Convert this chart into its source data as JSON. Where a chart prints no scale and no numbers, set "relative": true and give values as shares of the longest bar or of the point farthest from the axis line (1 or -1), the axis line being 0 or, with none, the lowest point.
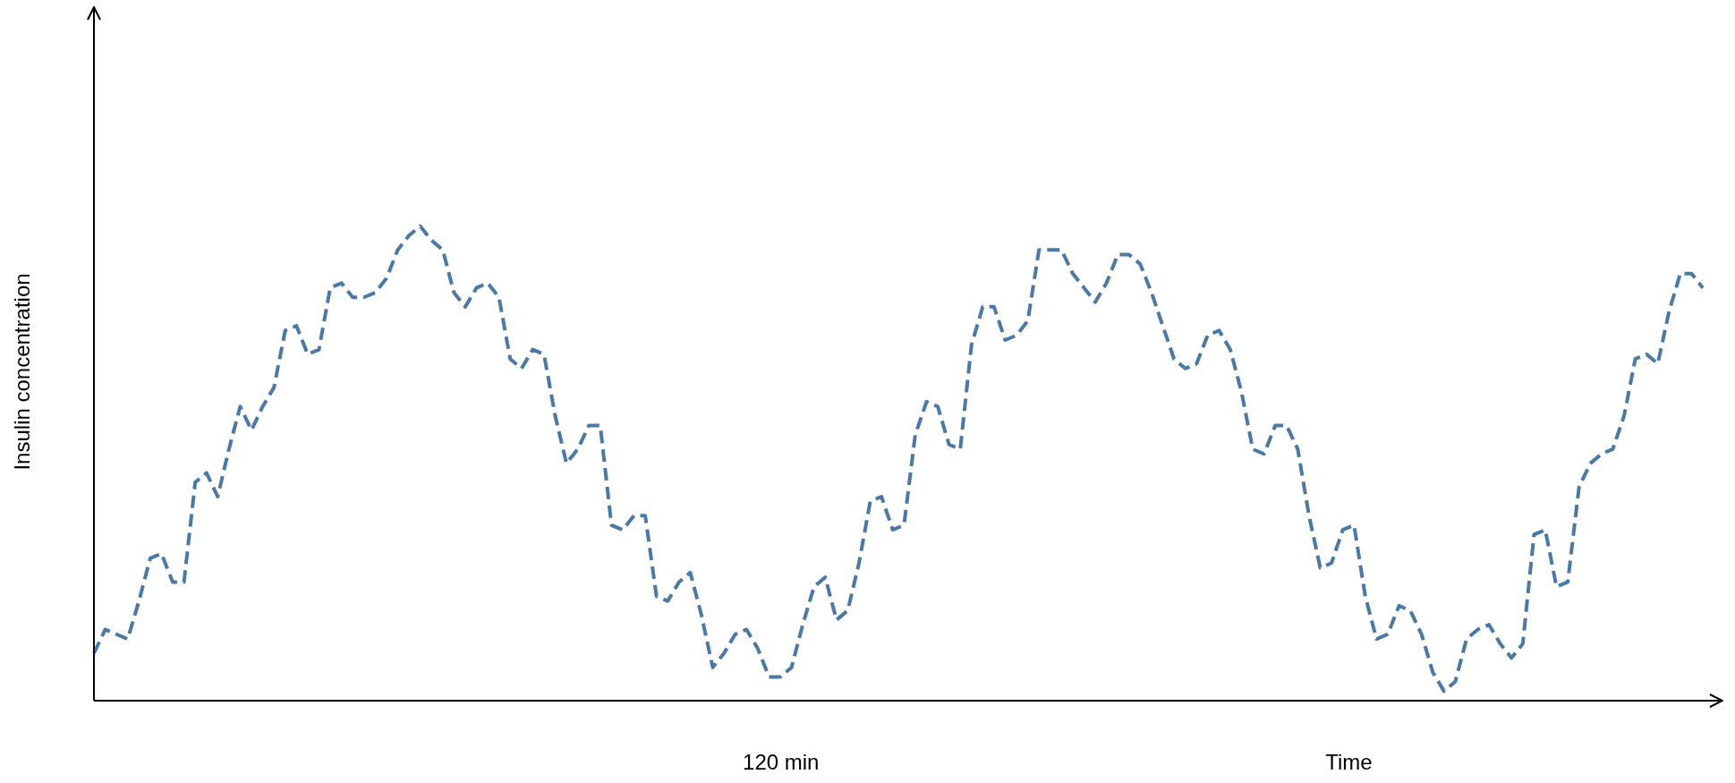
{
  "chart_data": {
    "type": "line",
    "xlabel": "Time",
    "ylabel": "Insulin concentration",
    "relative": true,
    "marker": "none",
    "line_style": "dashed",
    "categories": [
      null,
      null,
      null,
      null,
      null,
      null,
      null,
      null,
      null,
      null,
      null,
      null,
      null,
      null,
      null,
      null,
      null,
      null,
      null,
      null,
      null,
      null,
      null,
      null,
      null,
      null,
      null,
      null,
      null,
      null,
      null,
      null,
      null,
      null,
      null,
      null,
      null,
      null,
      null,
      null,
      null,
      null,
      null,
      null,
      null,
      null,
      null,
      null,
      null,
      null,
      null,
      null,
      null,
      null,
      null,
      null,
      null,
      null,
      null,
      null,
      null,
      null,
      null,
      null,
      null,
      null,
      null,
      null,
      null,
      null,
      null,
      null,
      null,
      null,
      null,
      null,
      null,
      null,
      null,
      null,
      null,
      null,
      null,
      null,
      null,
      null,
      null,
      null,
      null,
      null,
      null,
      null,
      null,
      null,
      null,
      null,
      null,
      null,
      null,
      null,
      null,
      null,
      null,
      null,
      null,
      null,
      null,
      null,
      null,
      null,
      null,
      null,
      null,
      null,
      null,
      null,
      null,
      null,
      null,
      null,
      null,
      null,
      null,
      null,
      null,
      null,
      null,
      null,
      null,
      null,
      null,
      null,
      null,
      null,
      null,
      null,
      null,
      null,
      null,
      null,
      null,
      null,
      null,
      null
    ],
    "annotations": [
      "120 min"
    ],
    "series": [
      {
        "color": "#4a78a8",
        "values": [
          0.1,
          0.15,
          0.14,
          0.13,
          0.21,
          0.3,
          0.31,
          0.25,
          0.25,
          0.46,
          0.48,
          0.43,
          0.53,
          0.62,
          0.57,
          0.62,
          0.66,
          0.78,
          0.79,
          0.73,
          0.74,
          0.87,
          0.88,
          0.85,
          0.85,
          0.86,
          0.89,
          0.95,
          0.98,
          1.0,
          0.97,
          0.95,
          0.86,
          0.83,
          0.87,
          0.88,
          0.85,
          0.72,
          0.7,
          0.74,
          0.73,
          0.6,
          0.5,
          0.53,
          0.58,
          0.58,
          0.37,
          0.36,
          0.39,
          0.39,
          0.22,
          0.21,
          0.25,
          0.27,
          0.18,
          0.07,
          0.1,
          0.14,
          0.15,
          0.11,
          0.05,
          0.05,
          0.07,
          0.16,
          0.24,
          0.26,
          0.17,
          0.19,
          0.29,
          0.42,
          0.43,
          0.36,
          0.37,
          0.56,
          0.63,
          0.62,
          0.54,
          0.53,
          0.75,
          0.83,
          0.83,
          0.76,
          0.77,
          0.8,
          0.95,
          0.95,
          0.95,
          0.9,
          0.87,
          0.84,
          0.88,
          0.94,
          0.94,
          0.92,
          0.86,
          0.79,
          0.72,
          0.7,
          0.71,
          0.77,
          0.78,
          0.74,
          0.65,
          0.53,
          0.52,
          0.58,
          0.58,
          0.53,
          0.39,
          0.28,
          0.29,
          0.36,
          0.37,
          0.22,
          0.13,
          0.14,
          0.2,
          0.19,
          0.14,
          0.06,
          0.02,
          0.04,
          0.13,
          0.15,
          0.16,
          0.12,
          0.09,
          0.12,
          0.35,
          0.36,
          0.24,
          0.25,
          0.45,
          0.5,
          0.52,
          0.53,
          0.6,
          0.72,
          0.73,
          0.71,
          0.82,
          0.9,
          0.9,
          0.87
        ]
      }
    ]
  }
}
